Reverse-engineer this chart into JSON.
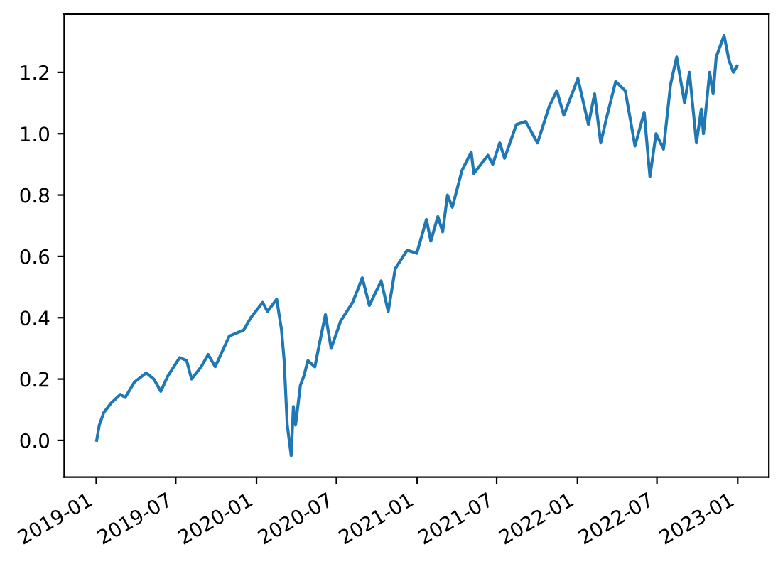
{
  "chart_data": {
    "type": "line",
    "x": [
      "2019-01-02",
      "2019-01-08",
      "2019-01-18",
      "2019-02-03",
      "2019-02-25",
      "2019-03-08",
      "2019-03-29",
      "2019-04-25",
      "2019-05-12",
      "2019-05-28",
      "2019-06-13",
      "2019-07-10",
      "2019-07-26",
      "2019-08-06",
      "2019-08-17",
      "2019-08-28",
      "2019-09-13",
      "2019-09-29",
      "2019-10-31",
      "2019-12-03",
      "2019-12-19",
      "2020-01-15",
      "2020-01-26",
      "2020-02-16",
      "2020-02-27",
      "2020-03-04",
      "2020-03-11",
      "2020-03-20",
      "2020-03-25",
      "2020-03-30",
      "2020-04-10",
      "2020-04-18",
      "2020-04-27",
      "2020-05-13",
      "2020-05-24",
      "2020-06-06",
      "2020-06-19",
      "2020-07-11",
      "2020-08-07",
      "2020-08-29",
      "2020-09-14",
      "2020-10-11",
      "2020-10-27",
      "2020-11-12",
      "2020-12-09",
      "2020-12-31",
      "2021-01-22",
      "2021-02-01",
      "2021-02-17",
      "2021-02-28",
      "2021-03-11",
      "2021-03-22",
      "2021-04-13",
      "2021-05-04",
      "2021-05-10",
      "2021-06-11",
      "2021-06-22",
      "2021-07-08",
      "2021-07-19",
      "2021-08-15",
      "2021-09-05",
      "2021-10-02",
      "2021-10-29",
      "2021-11-15",
      "2021-12-01",
      "2022-01-02",
      "2022-01-26",
      "2022-02-09",
      "2022-02-23",
      "2022-03-08",
      "2022-03-29",
      "2022-04-20",
      "2022-05-12",
      "2022-06-02",
      "2022-06-15",
      "2022-06-29",
      "2022-07-16",
      "2022-08-01",
      "2022-08-15",
      "2022-09-02",
      "2022-09-13",
      "2022-09-29",
      "2022-10-10",
      "2022-10-15",
      "2022-10-29",
      "2022-11-06",
      "2022-11-13",
      "2022-12-01",
      "2022-12-12",
      "2022-12-22",
      "2022-12-30"
    ],
    "series": [
      {
        "color": "#1f77b4",
        "values": [
          0.0,
          0.05,
          0.09,
          0.12,
          0.15,
          0.14,
          0.19,
          0.22,
          0.2,
          0.16,
          0.21,
          0.27,
          0.26,
          0.2,
          0.22,
          0.24,
          0.28,
          0.24,
          0.34,
          0.36,
          0.4,
          0.45,
          0.42,
          0.46,
          0.36,
          0.26,
          0.05,
          -0.05,
          0.11,
          0.05,
          0.18,
          0.21,
          0.26,
          0.24,
          0.32,
          0.41,
          0.3,
          0.39,
          0.45,
          0.53,
          0.44,
          0.52,
          0.42,
          0.56,
          0.62,
          0.61,
          0.72,
          0.65,
          0.73,
          0.68,
          0.8,
          0.76,
          0.88,
          0.94,
          0.87,
          0.93,
          0.9,
          0.97,
          0.92,
          1.03,
          1.04,
          0.97,
          1.09,
          1.14,
          1.06,
          1.18,
          1.03,
          1.13,
          0.97,
          1.05,
          1.17,
          1.14,
          0.96,
          1.07,
          0.86,
          1.0,
          0.95,
          1.16,
          1.25,
          1.1,
          1.2,
          0.97,
          1.08,
          1.0,
          1.2,
          1.13,
          1.25,
          1.32,
          1.24,
          1.2,
          1.22
        ]
      }
    ],
    "xlim": [
      "2018-10-20",
      "2023-03-13"
    ],
    "xticks": [
      "2019-01",
      "2019-07",
      "2020-01",
      "2020-07",
      "2021-01",
      "2021-07",
      "2022-01",
      "2022-07",
      "2023-01"
    ],
    "ylim": [
      -0.12,
      1.39
    ],
    "yticks": [
      {
        "value": 0,
        "label": "0.0"
      },
      0.2,
      0.4,
      0.6,
      0.8,
      {
        "value": 1,
        "label": "1.0"
      },
      1.2
    ],
    "grid": false,
    "legend": false,
    "marker": "none",
    "line_style": "solid"
  }
}
